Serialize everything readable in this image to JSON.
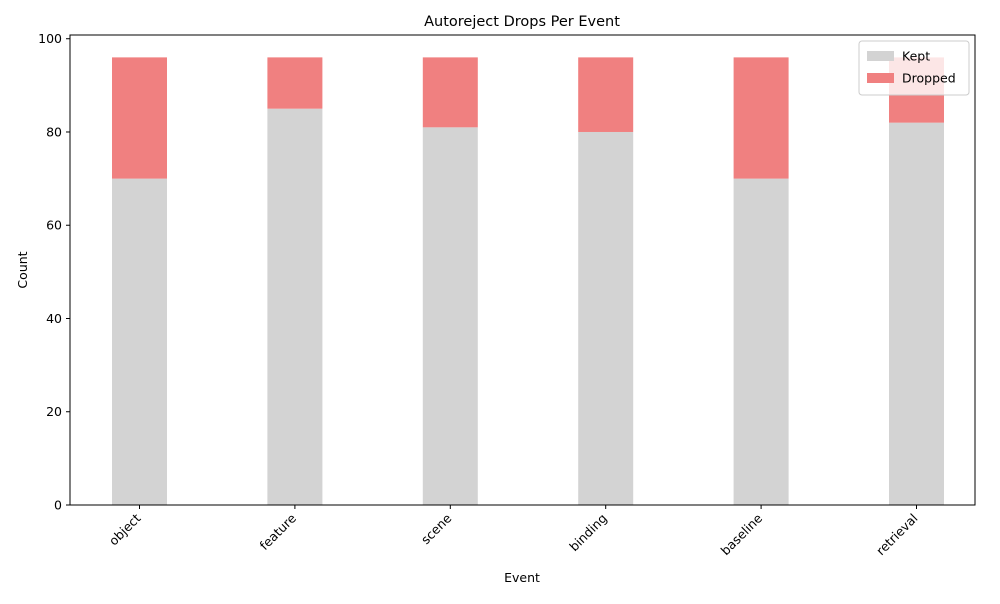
{
  "colors": {
    "kept": "#d3d3d3",
    "dropped": "#f08080",
    "axis": "#000000",
    "legend_border": "#cccccc"
  },
  "chart_data": {
    "type": "bar",
    "stacked": true,
    "title": "Autoreject Drops Per Event",
    "xlabel": "Event",
    "ylabel": "Count",
    "ylim": [
      0,
      100.8
    ],
    "yticks": [
      0,
      20,
      40,
      60,
      80,
      100
    ],
    "categories": [
      "object",
      "feature",
      "scene",
      "binding",
      "baseline",
      "retrieval"
    ],
    "series": [
      {
        "name": "Kept",
        "values": [
          70,
          85,
          81,
          80,
          70,
          82
        ],
        "color": "#d3d3d3"
      },
      {
        "name": "Dropped",
        "values": [
          26,
          11,
          15,
          16,
          26,
          14
        ],
        "color": "#f08080"
      }
    ],
    "grid": false,
    "legend_position": "top-right",
    "x_tick_rotation": 45
  }
}
